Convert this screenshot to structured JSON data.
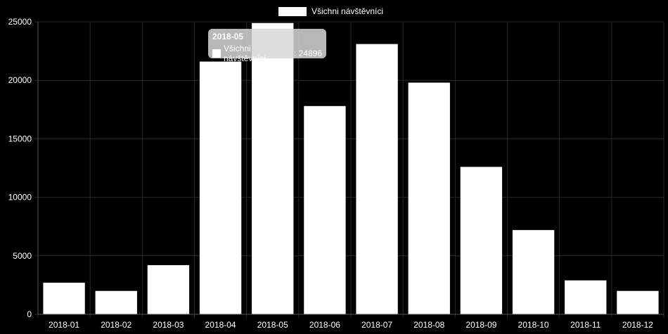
{
  "chart_data": {
    "type": "bar",
    "categories": [
      "2018-01",
      "2018-02",
      "2018-03",
      "2018-04",
      "2018-05",
      "2018-06",
      "2018-07",
      "2018-08",
      "2018-09",
      "2018-10",
      "2018-11",
      "2018-12"
    ],
    "series": [
      {
        "name": "Všichni návštěvníci",
        "values": [
          2700,
          2000,
          4200,
          21600,
          24896,
          17800,
          23100,
          19800,
          12600,
          7200,
          2900,
          2000
        ]
      }
    ],
    "ylim": [
      0,
      25000
    ],
    "yticks": [
      0,
      5000,
      10000,
      15000,
      20000,
      25000
    ],
    "grid": true,
    "legend_position": "top-center",
    "bar_color": "#ffffff",
    "background_color": "#000000",
    "grid_color": "#2a2a2a"
  },
  "legend": {
    "label": "Všichni návštěvníci"
  },
  "tooltip": {
    "title": "2018-05",
    "series_label": "Všichni návštěvníci",
    "value": "24896"
  }
}
